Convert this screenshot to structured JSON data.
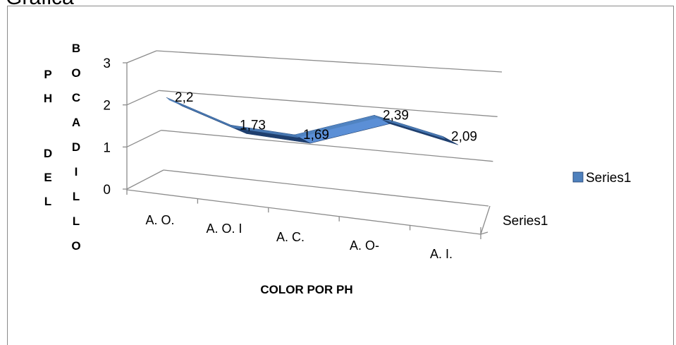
{
  "caption": "Gráfica",
  "chart_data": {
    "type": "line",
    "render": "3d-ribbon",
    "categories": [
      "A. O.",
      "A. O. I",
      "A. C.",
      "A. O-",
      "A. I."
    ],
    "series": [
      {
        "name": "Series1",
        "values": [
          2.2,
          1.73,
          1.69,
          2.39,
          2.09
        ]
      }
    ],
    "data_labels": [
      "2,2",
      "1,73",
      "1,69",
      "2,39",
      "2,09"
    ],
    "y_ticks": [
      "0",
      "1",
      "2",
      "3"
    ],
    "ylim": [
      0,
      3
    ],
    "ylabel_col1": [
      "P",
      "H",
      "",
      "D",
      "E",
      "L"
    ],
    "ylabel_col2": [
      "B",
      "O",
      "C",
      "A",
      "D",
      "I",
      "L",
      "L",
      "O"
    ],
    "xlabel": "COLOR POR PH",
    "depth_axis_label": "Series1",
    "legend": {
      "position": "right",
      "entries": [
        "Series1"
      ]
    },
    "grid": true,
    "colors": {
      "ribbon_top": "#4f81bd",
      "ribbon_dark": "#1f3f6e",
      "ribbon_light": "#5b8fd6",
      "gridline": "#8c8c8c"
    }
  }
}
